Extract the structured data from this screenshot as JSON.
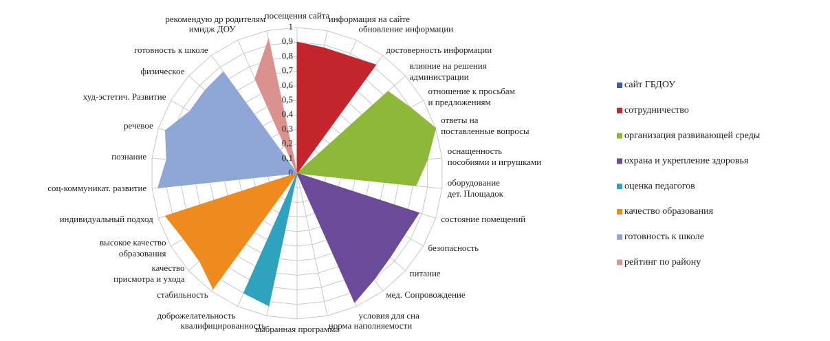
{
  "chart_data": {
    "type": "radar",
    "categories": [
      "посещения сайта",
      "информация на сайте",
      "обновление информации",
      "достоверность информации",
      "влияние на решения администрации",
      "отношение к просьбам и предложениям",
      "ответы на поставленные вопросы",
      "оснащенность пособиями и игрушками",
      "оборудование дет. Площадок",
      "состояние помещений",
      "безопасность",
      "питание",
      "мед. Сопровождение",
      "условия для сна",
      "норма наполняемости",
      "выбранная программа",
      "квалифицированность",
      "доброжелательность",
      "стабильность",
      "качество присмотра и ухода",
      "высокое качество образования",
      "индивидуальный подход",
      "соц-коммуникат. развитие",
      "познание",
      "речевое",
      "худ-эстетич. Развитие",
      "физическое",
      "готовность к школе",
      "имидж ДОУ",
      "рекомендую др родителям"
    ],
    "series": [
      {
        "name": "сайт ГБДОУ",
        "color": "#3b5ea6",
        "values": [
          0,
          0,
          0,
          0,
          0,
          0,
          0,
          0,
          0,
          0,
          0,
          0,
          0,
          0,
          0,
          0,
          0,
          0,
          0,
          0,
          0,
          0,
          0,
          0,
          0,
          0,
          0,
          0,
          0,
          0
        ]
      },
      {
        "name": "сотрудничество",
        "color": "#c3262c",
        "values": [
          0.9,
          0.88,
          0.88,
          0.92,
          0,
          0,
          0,
          0,
          0,
          0,
          0,
          0,
          0,
          0,
          0,
          0,
          0,
          0,
          0,
          0,
          0,
          0,
          0,
          0,
          0,
          0,
          0,
          0,
          0,
          0
        ]
      },
      {
        "name": "организация  развивающей среды",
        "color": "#8db83a",
        "values": [
          0,
          0,
          0,
          0,
          0.84,
          0.9,
          1,
          0.9,
          0.82,
          0,
          0,
          0,
          0,
          0,
          0,
          0,
          0,
          0,
          0,
          0,
          0,
          0,
          0,
          0,
          0,
          0,
          0,
          0,
          0,
          0
        ]
      },
      {
        "name": "охрана и укрепление здоровья",
        "color": "#6b4a99",
        "values": [
          0,
          0,
          0,
          0,
          0,
          0,
          0,
          0,
          0,
          0.88,
          0.85,
          0.86,
          0.9,
          0.97,
          0,
          0,
          0,
          0,
          0,
          0,
          0,
          0,
          0,
          0,
          0,
          0,
          0,
          0,
          0,
          0
        ]
      },
      {
        "name": "оценка педагогов",
        "color": "#2fa2bd",
        "values": [
          0,
          0,
          0,
          0,
          0,
          0,
          0,
          0,
          0,
          0,
          0,
          0,
          0,
          0,
          0,
          0,
          0.93,
          0.9,
          0,
          0,
          0,
          0,
          0,
          0,
          0,
          0,
          0,
          0,
          0,
          0
        ]
      },
      {
        "name": "качество образования",
        "color": "#ef8a1e",
        "values": [
          0,
          0,
          0,
          0,
          0,
          0,
          0,
          0,
          0,
          0,
          0,
          0,
          0,
          0,
          0,
          0,
          0,
          0,
          0.98,
          0.9,
          0.9,
          0.95,
          0,
          0,
          0,
          0,
          0,
          0,
          0,
          0
        ]
      },
      {
        "name": "готовность к школе",
        "color": "#8ea7d6",
        "values": [
          0,
          0,
          0,
          0,
          0,
          0,
          0,
          0,
          0,
          0,
          0,
          0,
          0,
          0,
          0,
          0,
          0,
          0,
          0,
          0,
          0,
          0,
          0.96,
          0.9,
          0.95,
          0.85,
          0.85,
          0.86,
          0,
          0
        ]
      },
      {
        "name": "рейтинг  по району",
        "color": "#d9928e",
        "values": [
          0,
          0,
          0,
          0,
          0,
          0,
          0,
          0,
          0,
          0,
          0,
          0,
          0,
          0,
          0,
          0,
          0,
          0,
          0,
          0,
          0,
          0,
          0,
          0,
          0,
          0,
          0,
          0,
          0.71,
          0.94
        ]
      }
    ],
    "rlim": [
      0,
      1
    ],
    "rticks": [
      0,
      {
        "value": 0.1,
        "label": "0,1"
      },
      {
        "value": 0.2,
        "label": "0,2"
      },
      {
        "value": 0.3,
        "label": "0,3"
      },
      {
        "value": 0.4,
        "label": "0,4"
      },
      {
        "value": 0.5,
        "label": "0,5"
      },
      {
        "value": 0.6,
        "label": "0,6"
      },
      {
        "value": 0.7,
        "label": "0,7"
      },
      {
        "value": 0.8,
        "label": "0,8"
      },
      {
        "value": 0.9,
        "label": "0,9"
      },
      1
    ],
    "grid": true,
    "legend": "right"
  }
}
